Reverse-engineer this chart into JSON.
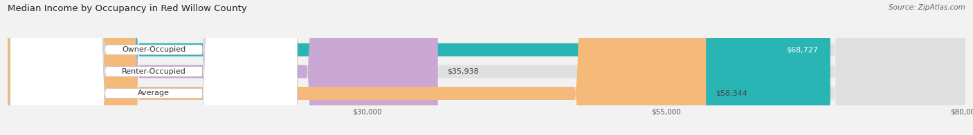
{
  "title": "Median Income by Occupancy in Red Willow County",
  "source": "Source: ZipAtlas.com",
  "categories": [
    "Owner-Occupied",
    "Renter-Occupied",
    "Average"
  ],
  "values": [
    68727,
    35938,
    58344
  ],
  "bar_colors": [
    "#2ab5b5",
    "#c9a8d4",
    "#f5b97a"
  ],
  "value_labels": [
    "$68,727",
    "$35,938",
    "$58,344"
  ],
  "value_label_inside": [
    true,
    false,
    false
  ],
  "xmin": 0,
  "xmax": 80000,
  "xticks": [
    30000,
    55000,
    80000
  ],
  "xticklabels": [
    "$30,000",
    "$55,000",
    "$80,000"
  ],
  "bar_height": 0.6,
  "figsize": [
    14.06,
    1.96
  ],
  "dpi": 100,
  "bg_color": "#f2f2f2",
  "bar_bg_color": "#e0e0e0",
  "title_fontsize": 9.5,
  "source_fontsize": 7.5,
  "label_fontsize": 8,
  "value_fontsize": 8,
  "tick_fontsize": 7.5
}
